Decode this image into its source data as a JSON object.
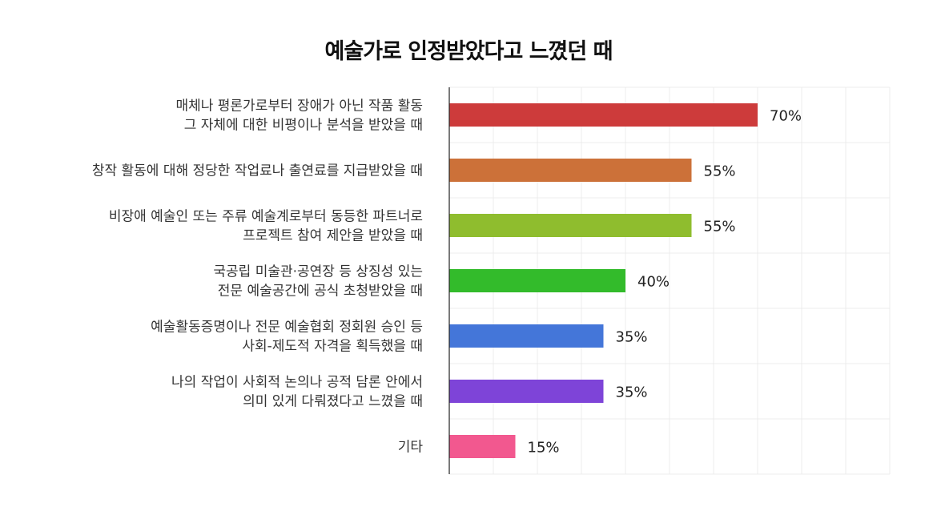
{
  "chart_data": {
    "type": "bar",
    "orientation": "horizontal",
    "title": "예술가로 인정받았다고 느꼈던 때",
    "xlim": [
      0,
      100
    ],
    "grid": true,
    "categories": [
      [
        "매체나 평론가로부터 장애가 아닌 작품 활동",
        "그 자체에 대한 비평이나 분석을 받았을 때"
      ],
      [
        "창작 활동에 대해 정당한 작업료나 출연료를 지급받았을 때"
      ],
      [
        "비장애 예술인 또는 주류 예술계로부터 동등한 파트너로",
        "프로젝트 참여 제안을 받았을 때"
      ],
      [
        "국공립 미술관·공연장 등 상징성 있는",
        "전문 예술공간에 공식 초청받았을 때"
      ],
      [
        "예술활동증명이나 전문 예술협회 정회원 승인 등",
        "사회-제도적 자격을 획득했을 때"
      ],
      [
        "나의 작업이 사회적 논의나 공적 담론 안에서",
        "의미 있게 다뤄졌다고 느꼈을 때"
      ],
      [
        "기타"
      ]
    ],
    "values": [
      70,
      55,
      55,
      40,
      35,
      35,
      15
    ],
    "value_labels": [
      "70%",
      "55%",
      "55%",
      "40%",
      "35%",
      "35%",
      "15%"
    ],
    "colors": [
      "#cd3b3b",
      "#cc7139",
      "#8fbd2e",
      "#33bb2b",
      "#4476d9",
      "#7e44d8",
      "#f2588f"
    ]
  }
}
